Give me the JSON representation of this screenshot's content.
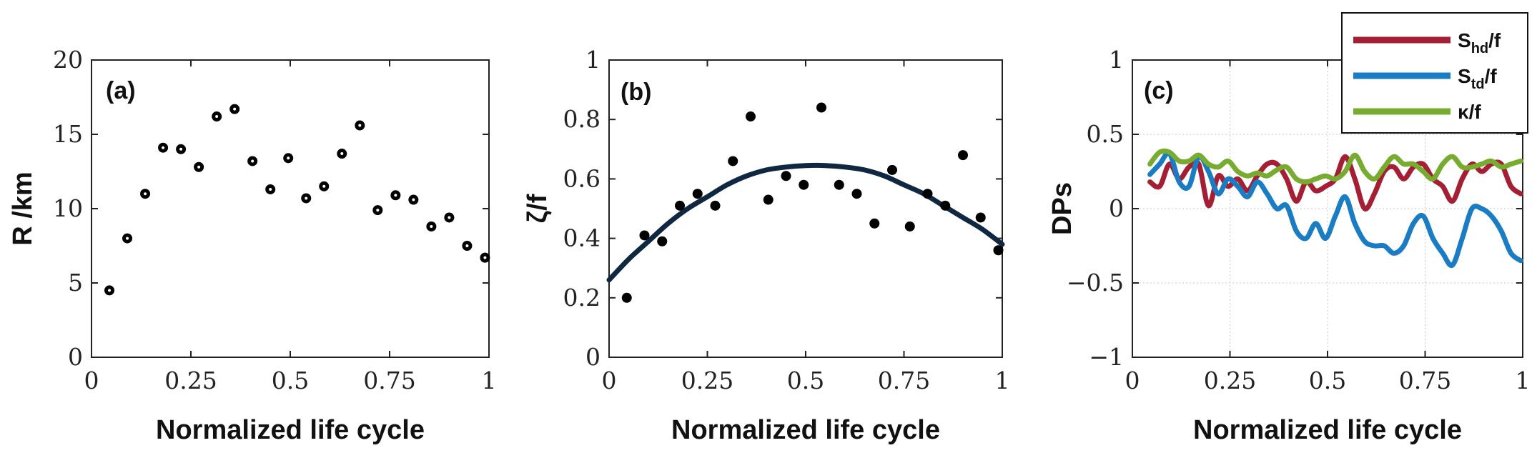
{
  "chart_data": [
    {
      "type": "scatter",
      "panel": "(a)",
      "xlabel": "Normalized life cycle",
      "ylabel": "R /km",
      "xlim": [
        0,
        1
      ],
      "ylim": [
        0,
        20
      ],
      "xticks": [
        0,
        0.25,
        0.5,
        0.75,
        1
      ],
      "xtick_labels": [
        "0",
        "0.25",
        "0.5",
        "0.75",
        "1"
      ],
      "yticks": [
        0,
        5,
        10,
        15,
        20
      ],
      "ytick_labels": [
        "0",
        "5",
        "10",
        "15",
        "20"
      ],
      "grid": false,
      "marker": "circle-with-white-center",
      "x": [
        0.045,
        0.09,
        0.135,
        0.18,
        0.225,
        0.27,
        0.315,
        0.36,
        0.405,
        0.45,
        0.495,
        0.54,
        0.585,
        0.63,
        0.675,
        0.72,
        0.765,
        0.81,
        0.855,
        0.9,
        0.945,
        0.99
      ],
      "y": [
        4.5,
        8.0,
        11.0,
        14.1,
        14.0,
        12.8,
        16.2,
        16.7,
        13.2,
        11.3,
        13.4,
        10.7,
        11.5,
        13.7,
        15.6,
        9.9,
        10.9,
        10.6,
        8.8,
        9.4,
        7.5,
        6.7
      ]
    },
    {
      "type": "scatter",
      "panel": "(b)",
      "xlabel": "Normalized life cycle",
      "ylabel": "ζ/f",
      "xlim": [
        0,
        1
      ],
      "ylim": [
        0,
        1
      ],
      "xticks": [
        0,
        0.25,
        0.5,
        0.75,
        1
      ],
      "xtick_labels": [
        "0",
        "0.25",
        "0.5",
        "0.75",
        "1"
      ],
      "yticks": [
        0,
        0.2,
        0.4,
        0.6,
        0.8,
        1
      ],
      "ytick_labels": [
        "0",
        "0.2",
        "0.4",
        "0.6",
        "0.8",
        "1"
      ],
      "grid": false,
      "marker": "filled-circle",
      "x": [
        0.045,
        0.09,
        0.135,
        0.18,
        0.225,
        0.27,
        0.315,
        0.36,
        0.405,
        0.45,
        0.495,
        0.54,
        0.585,
        0.63,
        0.675,
        0.72,
        0.765,
        0.81,
        0.855,
        0.9,
        0.945,
        0.99
      ],
      "y": [
        0.2,
        0.41,
        0.39,
        0.51,
        0.55,
        0.51,
        0.66,
        0.81,
        0.53,
        0.61,
        0.58,
        0.84,
        0.58,
        0.55,
        0.45,
        0.63,
        0.44,
        0.55,
        0.51,
        0.68,
        0.47,
        0.36
      ],
      "fit": {
        "type": "quadratic",
        "color": "#0f2740",
        "x": [
          0,
          0.05,
          0.1,
          0.15,
          0.2,
          0.25,
          0.3,
          0.35,
          0.4,
          0.45,
          0.5,
          0.55,
          0.6,
          0.65,
          0.7,
          0.75,
          0.8,
          0.85,
          0.9,
          0.95,
          1
        ],
        "y": [
          0.26,
          0.33,
          0.39,
          0.45,
          0.5,
          0.54,
          0.58,
          0.61,
          0.63,
          0.64,
          0.645,
          0.645,
          0.64,
          0.63,
          0.61,
          0.58,
          0.55,
          0.51,
          0.47,
          0.43,
          0.38
        ]
      }
    },
    {
      "type": "line",
      "panel": "(c)",
      "xlabel": "Normalized life cycle",
      "ylabel": "DPs",
      "xlim": [
        0,
        1
      ],
      "ylim": [
        -1,
        1
      ],
      "xticks": [
        0,
        0.25,
        0.5,
        0.75,
        1
      ],
      "xtick_labels": [
        "0",
        "0.25",
        "0.5",
        "0.75",
        "1"
      ],
      "yticks": [
        -1,
        -0.5,
        0,
        0.5,
        1
      ],
      "ytick_labels": [
        "−1",
        "−0.5",
        "0",
        "0.5",
        "1"
      ],
      "grid": true,
      "legend": "top-right",
      "x": [
        0.045,
        0.07,
        0.095,
        0.12,
        0.145,
        0.17,
        0.195,
        0.22,
        0.245,
        0.27,
        0.295,
        0.32,
        0.345,
        0.37,
        0.395,
        0.42,
        0.445,
        0.47,
        0.495,
        0.52,
        0.545,
        0.57,
        0.595,
        0.62,
        0.645,
        0.67,
        0.695,
        0.72,
        0.745,
        0.77,
        0.795,
        0.82,
        0.845,
        0.87,
        0.895,
        0.92,
        0.945,
        0.97,
        0.995
      ],
      "series": [
        {
          "name_main": "S",
          "name_sub": "hd",
          "name_suffix": "/f",
          "color": "#a41e34",
          "values": [
            0.18,
            0.15,
            0.3,
            0.2,
            0.28,
            0.3,
            0.02,
            0.22,
            0.15,
            0.2,
            0.12,
            0.22,
            0.3,
            0.3,
            0.2,
            0.05,
            0.18,
            0.12,
            0.15,
            0.2,
            0.35,
            0.2,
            0.0,
            0.1,
            0.25,
            0.28,
            0.2,
            0.28,
            0.3,
            0.2,
            0.15,
            0.05,
            0.2,
            0.3,
            0.25,
            0.3,
            0.3,
            0.15,
            0.1
          ]
        },
        {
          "name_main": "S",
          "name_sub": "td",
          "name_suffix": "/f",
          "color": "#1a7cc2",
          "values": [
            0.23,
            0.3,
            0.37,
            0.18,
            0.15,
            0.35,
            0.25,
            0.1,
            0.2,
            0.15,
            0.08,
            0.18,
            0.1,
            0.0,
            0.02,
            -0.15,
            -0.2,
            -0.1,
            -0.2,
            -0.05,
            0.08,
            -0.1,
            -0.22,
            -0.25,
            -0.25,
            -0.3,
            -0.25,
            -0.1,
            -0.05,
            -0.2,
            -0.3,
            -0.38,
            -0.2,
            0.0,
            0.0,
            -0.05,
            -0.15,
            -0.3,
            -0.35
          ]
        },
        {
          "name_main": "κ",
          "name_sub": "",
          "name_suffix": "/f",
          "color": "#77ac30",
          "values": [
            0.3,
            0.38,
            0.38,
            0.32,
            0.32,
            0.36,
            0.3,
            0.28,
            0.32,
            0.25,
            0.22,
            0.24,
            0.22,
            0.26,
            0.28,
            0.2,
            0.18,
            0.2,
            0.22,
            0.2,
            0.25,
            0.36,
            0.25,
            0.2,
            0.28,
            0.35,
            0.3,
            0.3,
            0.25,
            0.2,
            0.3,
            0.35,
            0.28,
            0.28,
            0.3,
            0.32,
            0.28,
            0.3,
            0.32
          ]
        }
      ]
    }
  ]
}
